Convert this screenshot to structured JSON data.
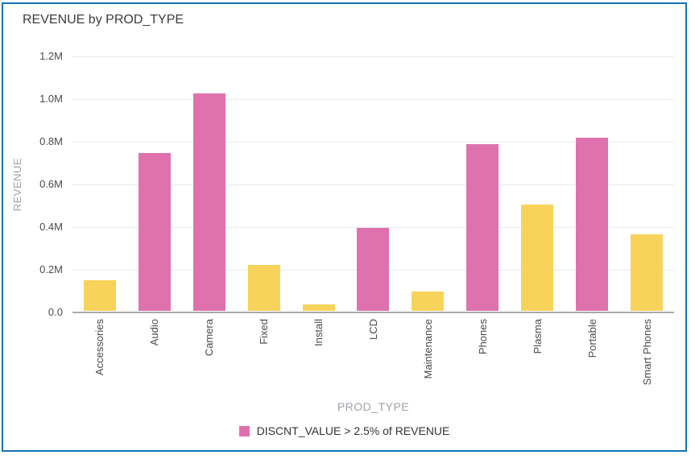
{
  "chart_data": {
    "type": "bar",
    "title": "REVENUE by PROD_TYPE",
    "xlabel": "PROD_TYPE",
    "ylabel": "REVENUE",
    "unit": "M",
    "ylim": [
      0,
      1.2
    ],
    "grid": "horizontal",
    "legend_position": "bottom",
    "y_ticks": [
      {
        "label": "0.0",
        "value": 0.0
      },
      {
        "label": "0.2M",
        "value": 0.2
      },
      {
        "label": "0.4M",
        "value": 0.4
      },
      {
        "label": "0.6M",
        "value": 0.6
      },
      {
        "label": "0.8M",
        "value": 0.8
      },
      {
        "label": "1.0M",
        "value": 1.0
      },
      {
        "label": "1.2M",
        "value": 1.2
      }
    ],
    "categories": [
      "Accessories",
      "Audio",
      "Camera",
      "Fixed",
      "Install",
      "LCD",
      "Maintenance",
      "Phones",
      "Plasma",
      "Portable",
      "Smart Phones"
    ],
    "values": [
      0.145,
      0.74,
      1.02,
      0.215,
      0.03,
      0.39,
      0.09,
      0.78,
      0.5,
      0.81,
      0.36
    ],
    "highlighted": [
      false,
      true,
      true,
      false,
      false,
      true,
      false,
      true,
      false,
      true,
      false
    ],
    "colors": {
      "highlight": "#df72ae",
      "default": "#f7d35c",
      "frame_border": "#1273b4",
      "gridline": "#e8e8f0",
      "axis_line": "#a9a9a9"
    },
    "legend": [
      {
        "label": "DISCNT_VALUE > 2.5% of REVENUE",
        "swatch_color": "#df72ae"
      }
    ]
  }
}
